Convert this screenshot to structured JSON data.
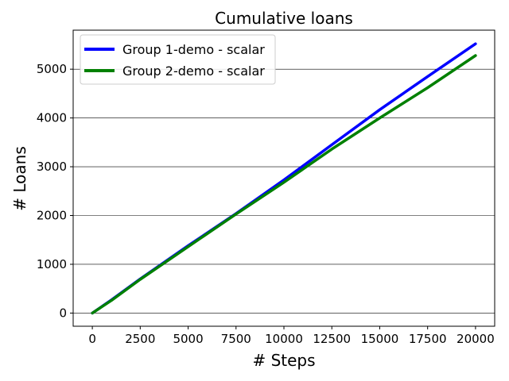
{
  "chart_data": {
    "type": "line",
    "title": "Cumulative loans",
    "xlabel": "# Steps",
    "ylabel": "# Loans",
    "xlim": [
      -1000,
      21000
    ],
    "ylim": [
      -270,
      5800
    ],
    "xticks": [
      0,
      2500,
      5000,
      7500,
      10000,
      12500,
      15000,
      17500,
      20000
    ],
    "xtick_labels": [
      "0",
      "2500",
      "5000",
      "7500",
      "10000",
      "12500",
      "15000",
      "17500",
      "20000"
    ],
    "yticks": [
      0,
      1000,
      2000,
      3000,
      4000,
      5000
    ],
    "ytick_labels": [
      "0",
      "1000",
      "2000",
      "3000",
      "4000",
      "5000"
    ],
    "grid": "horizontal",
    "legend_position": "top-left",
    "series": [
      {
        "name": "Group 1-demo - scalar",
        "color": "#0000ff",
        "x": [
          0,
          1000,
          2500,
          5000,
          7500,
          10000,
          12500,
          15000,
          17500,
          20000
        ],
        "y": [
          0,
          270,
          700,
          1380,
          2040,
          2730,
          3450,
          4170,
          4850,
          5520
        ]
      },
      {
        "name": "Group 2-demo - scalar",
        "color": "#008000",
        "x": [
          0,
          1000,
          2500,
          5000,
          7500,
          10000,
          12500,
          15000,
          17500,
          20000
        ],
        "y": [
          0,
          260,
          690,
          1360,
          2030,
          2680,
          3360,
          4000,
          4620,
          5280
        ]
      }
    ]
  }
}
